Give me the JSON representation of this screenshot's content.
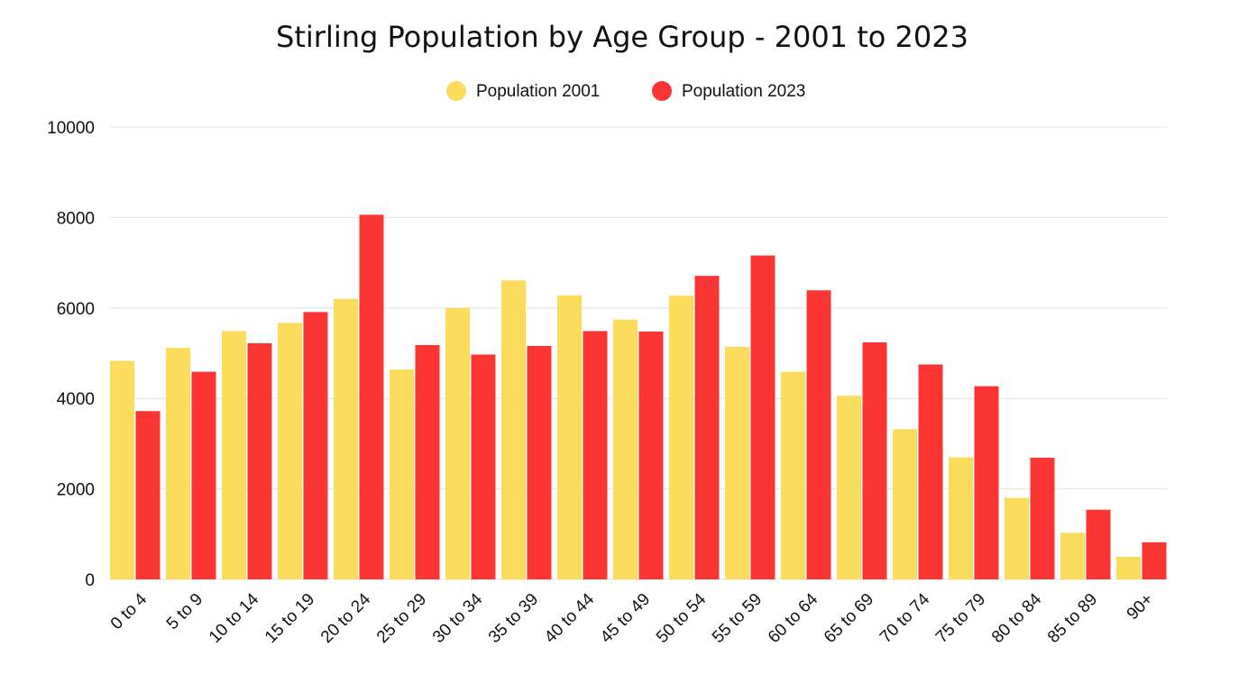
{
  "chart_data": {
    "type": "bar",
    "title": "Stirling Population by Age Group - 2001 to 2023",
    "xlabel": "",
    "ylabel": "",
    "ylim": [
      0,
      10000
    ],
    "yticks": [
      "0",
      "2000",
      "4000",
      "6000",
      "8000",
      "10000"
    ],
    "grid": true,
    "legend_position": "top",
    "categories": [
      "0 to 4",
      "5 to 9",
      "10 to 14",
      "15 to 19",
      "20 to 24",
      "25 to 29",
      "30 to 34",
      "35 to 39",
      "40 to 44",
      "45 to 49",
      "50 to 54",
      "55 to 59",
      "60 to 64",
      "65 to 69",
      "70 to 74",
      "75 to 79",
      "80 to 84",
      "85 to 89",
      "90+"
    ],
    "series": [
      {
        "name": "Population 2001",
        "color": "#FCDC5C",
        "values": [
          4830,
          5120,
          5490,
          5670,
          6200,
          4640,
          6000,
          6610,
          6280,
          5740,
          6270,
          5140,
          4590,
          4060,
          3320,
          2700,
          1800,
          1030,
          500
        ]
      },
      {
        "name": "Population 2023",
        "color": "#FB3434",
        "values": [
          3720,
          4590,
          5220,
          5910,
          8060,
          5180,
          4970,
          5160,
          5490,
          5480,
          6710,
          7160,
          6390,
          5240,
          4750,
          4270,
          2690,
          1540,
          820
        ]
      }
    ]
  }
}
